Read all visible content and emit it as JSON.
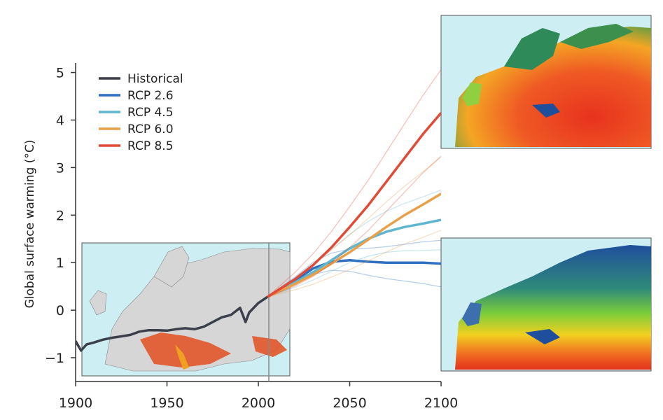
{
  "chart_data": {
    "type": "line",
    "title": "",
    "xlabel": "",
    "ylabel": "Global surface warming (°C)",
    "xlim": [
      1900,
      2100
    ],
    "ylim": [
      -1.5,
      5.2
    ],
    "x_ticks": [
      "1900",
      "1950",
      "2000",
      "2050",
      "2100"
    ],
    "y_ticks": [
      "5",
      "4",
      "3",
      "2",
      "1",
      "0",
      "−1"
    ],
    "legend_position": "top-left",
    "series": [
      {
        "name": "Historical",
        "color": "#3a3f4a",
        "x": [
          1900,
          1903,
          1906,
          1910,
          1915,
          1920,
          1925,
          1930,
          1935,
          1940,
          1945,
          1950,
          1955,
          1960,
          1965,
          1970,
          1975,
          1980,
          1985,
          1990,
          1993,
          1995,
          2000,
          2005
        ],
        "y": [
          -0.65,
          -0.85,
          -0.72,
          -0.68,
          -0.62,
          -0.58,
          -0.55,
          -0.52,
          -0.45,
          -0.42,
          -0.42,
          -0.43,
          -0.4,
          -0.38,
          -0.4,
          -0.35,
          -0.25,
          -0.15,
          -0.1,
          0.05,
          -0.25,
          -0.05,
          0.15,
          0.28
        ]
      },
      {
        "name": "RCP 2.6",
        "color": "#2f6fbf",
        "x": [
          2005,
          2020,
          2030,
          2040,
          2050,
          2060,
          2070,
          2080,
          2090,
          2100
        ],
        "y": [
          0.28,
          0.62,
          0.88,
          1.02,
          1.05,
          1.02,
          1.0,
          1.0,
          1.0,
          0.98
        ]
      },
      {
        "name": "RCP 4.5",
        "color": "#5fb6cf",
        "x": [
          2005,
          2020,
          2030,
          2040,
          2050,
          2060,
          2070,
          2080,
          2090,
          2100
        ],
        "y": [
          0.28,
          0.58,
          0.8,
          1.05,
          1.3,
          1.5,
          1.65,
          1.75,
          1.82,
          1.9
        ]
      },
      {
        "name": "RCP 6.0",
        "color": "#e8a04a",
        "x": [
          2005,
          2020,
          2030,
          2040,
          2050,
          2060,
          2070,
          2080,
          2090,
          2100
        ],
        "y": [
          0.28,
          0.55,
          0.75,
          0.98,
          1.22,
          1.48,
          1.75,
          2.0,
          2.22,
          2.45
        ]
      },
      {
        "name": "RCP 8.5",
        "color": "#e04a36",
        "x": [
          2005,
          2020,
          2030,
          2040,
          2050,
          2060,
          2070,
          2080,
          2090,
          2100
        ],
        "y": [
          0.28,
          0.65,
          0.95,
          1.32,
          1.75,
          2.2,
          2.7,
          3.2,
          3.7,
          4.15
        ]
      }
    ]
  }
}
